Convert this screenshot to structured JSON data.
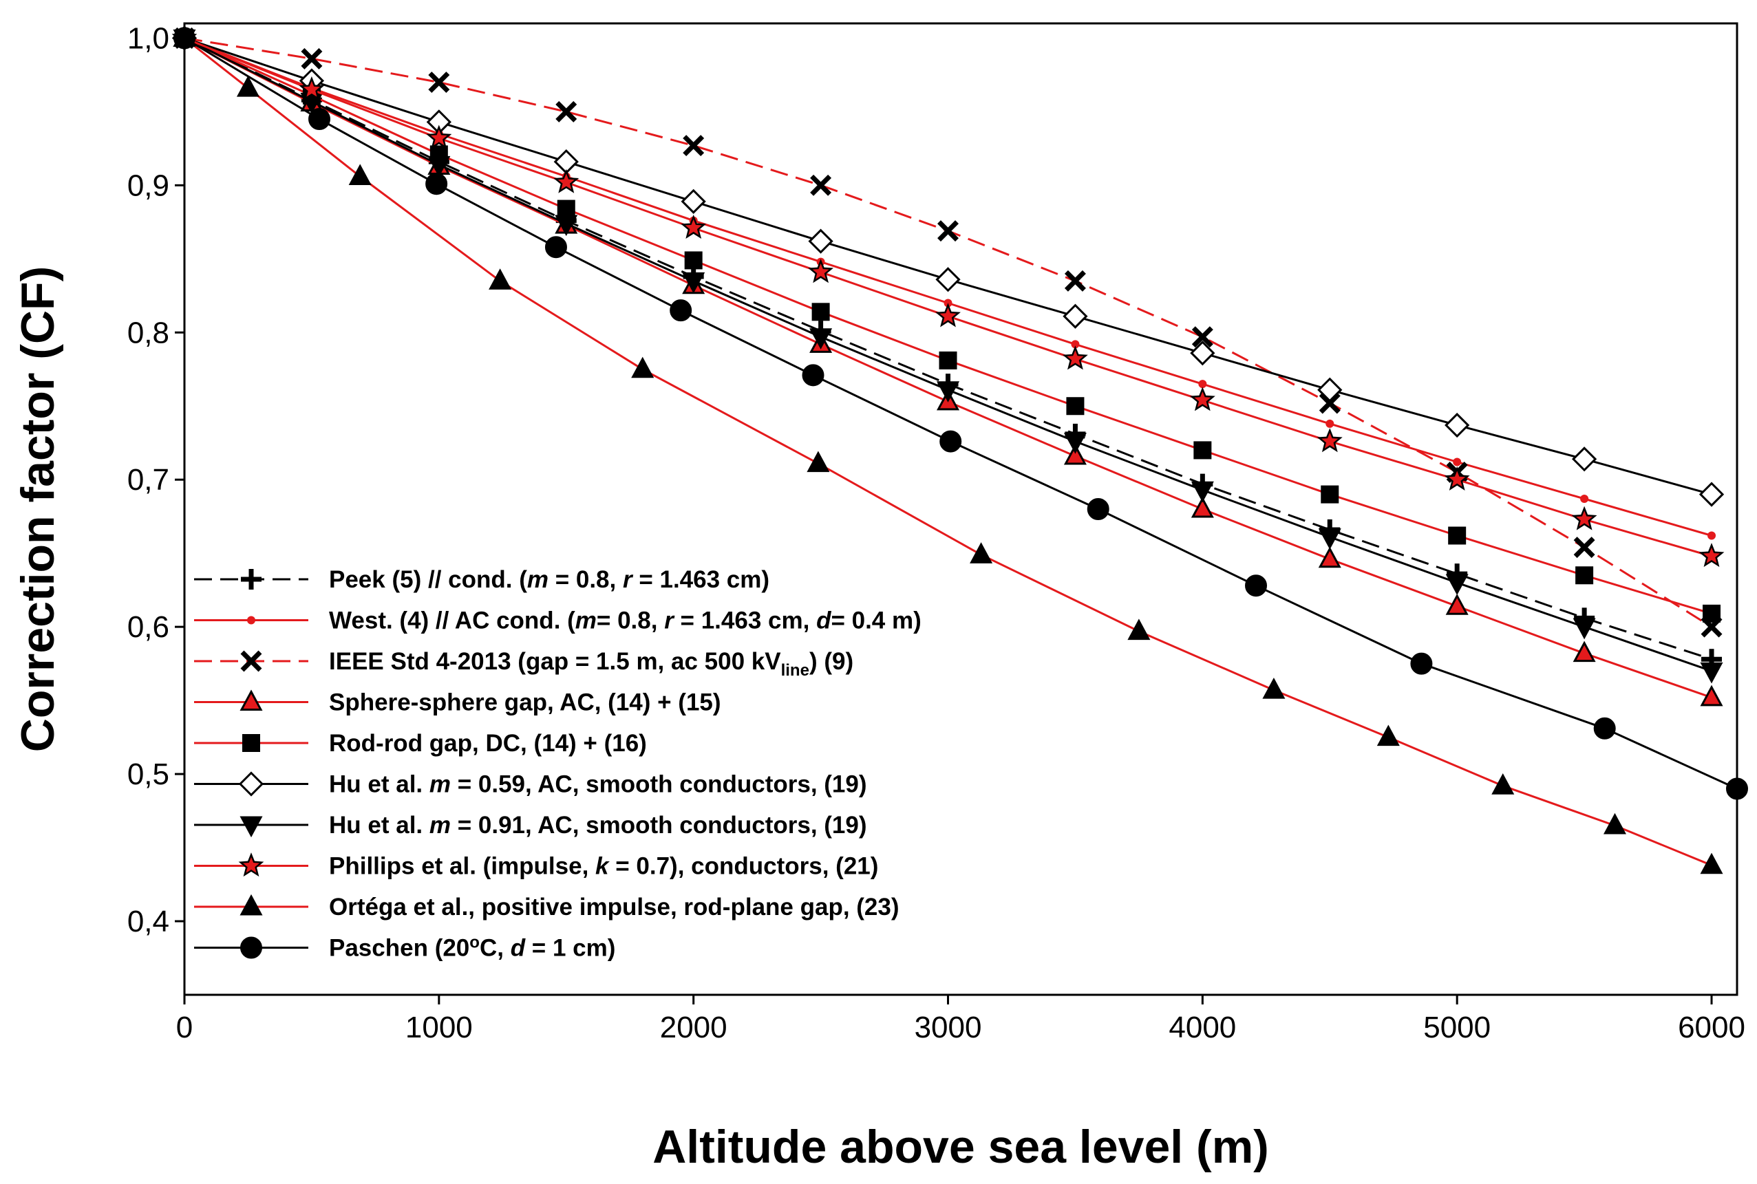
{
  "chart_data": {
    "type": "line",
    "title": "",
    "xlabel": "Altitude above sea level (m)",
    "ylabel": "Correction factor (CF)",
    "xlim": [
      0,
      6100
    ],
    "ylim": [
      0.35,
      1.01
    ],
    "x_ticks": [
      0,
      1000,
      2000,
      3000,
      4000,
      5000,
      6000
    ],
    "x_tick_labels": [
      "0",
      "1000",
      "2000",
      "3000",
      "4000",
      "5000",
      "6000"
    ],
    "y_ticks": [
      0.4,
      0.5,
      0.6,
      0.7,
      0.8,
      0.9,
      1.0
    ],
    "y_tick_labels": [
      "0,4",
      "0,5",
      "0,6",
      "0,7",
      "0,8",
      "0,9",
      "1,0"
    ],
    "grid": false,
    "legend_position": "bottom-left",
    "series": [
      {
        "name": "Peek (5) // cond. (m = 0.8, r = 1.463 cm)",
        "label_parts": [
          [
            "Peek (5) // cond. (",
            ""
          ],
          [
            "m",
            "italic"
          ],
          [
            " = 0.8, ",
            ""
          ],
          [
            "r",
            "italic"
          ],
          [
            " = 1.463 cm)",
            ""
          ]
        ],
        "color": "#000000",
        "dash": "dashed",
        "marker": "plus",
        "marker_fill": "#000000",
        "x": [
          0,
          500,
          1000,
          1500,
          2000,
          2500,
          3000,
          3500,
          4000,
          4500,
          5000,
          5500,
          6000
        ],
        "y": [
          1.0,
          0.958,
          0.916,
          0.876,
          0.838,
          0.801,
          0.765,
          0.731,
          0.697,
          0.666,
          0.636,
          0.606,
          0.578
        ]
      },
      {
        "name": "West. (4) // AC cond. (m= 0.8, r = 1.463 cm, d= 0.4 m)",
        "label_parts": [
          [
            "West. (4) // AC cond. (",
            ""
          ],
          [
            "m",
            "italic"
          ],
          [
            "= 0.8, ",
            ""
          ],
          [
            "r",
            "italic"
          ],
          [
            " = 1.463 cm, ",
            ""
          ],
          [
            "d",
            "italic"
          ],
          [
            "= 0.4 m)",
            ""
          ]
        ],
        "color": "#e41a1c",
        "dash": "solid",
        "marker": "dot",
        "marker_fill": "#e41a1c",
        "x": [
          0,
          500,
          1000,
          1500,
          2000,
          2500,
          3000,
          3500,
          4000,
          4500,
          5000,
          5500,
          6000
        ],
        "y": [
          1.0,
          0.966,
          0.935,
          0.906,
          0.876,
          0.848,
          0.82,
          0.792,
          0.765,
          0.738,
          0.712,
          0.687,
          0.662
        ]
      },
      {
        "name": "IEEE Std 4-2013 (gap = 1.5 m, ac 500 kVline) (9)",
        "label_parts": [
          [
            "IEEE Std 4-2013 (gap = 1.5 m, ac 500 kV",
            ""
          ],
          [
            "line",
            "sub"
          ],
          [
            ") (9)",
            ""
          ]
        ],
        "color": "#e41a1c",
        "dash": "dashed",
        "marker": "x",
        "marker_fill": "#000000",
        "x": [
          0,
          500,
          1000,
          1500,
          2000,
          2500,
          3000,
          3500,
          4000,
          4500,
          5000,
          5500,
          6000
        ],
        "y": [
          1.0,
          0.986,
          0.97,
          0.95,
          0.927,
          0.9,
          0.869,
          0.835,
          0.797,
          0.752,
          0.705,
          0.654,
          0.6
        ]
      },
      {
        "name": "Sphere-sphere gap, AC, (14) + (15)",
        "label_parts": [
          [
            "Sphere-sphere gap, AC, (14) + (15)",
            ""
          ]
        ],
        "color": "#e41a1c",
        "dash": "solid",
        "marker": "triangle",
        "marker_fill": "#e41a1c",
        "x": [
          0,
          500,
          1000,
          1500,
          2000,
          2500,
          3000,
          3500,
          4000,
          4500,
          5000,
          5500,
          6000
        ],
        "y": [
          1.0,
          0.956,
          0.913,
          0.873,
          0.832,
          0.792,
          0.753,
          0.716,
          0.68,
          0.646,
          0.614,
          0.582,
          0.552
        ]
      },
      {
        "name": "Rod-rod gap, DC, (14) + (16)",
        "label_parts": [
          [
            "Rod-rod gap, DC, (14) + (16)",
            ""
          ]
        ],
        "color": "#e41a1c",
        "dash": "solid",
        "marker": "square",
        "marker_fill": "#000000",
        "x": [
          0,
          500,
          1000,
          1500,
          2000,
          2500,
          3000,
          3500,
          4000,
          4500,
          5000,
          5500,
          6000
        ],
        "y": [
          1.0,
          0.961,
          0.921,
          0.884,
          0.849,
          0.814,
          0.781,
          0.75,
          0.72,
          0.69,
          0.662,
          0.635,
          0.609
        ]
      },
      {
        "name": "Hu et al. m = 0.59, AC, smooth conductors, (19)",
        "label_parts": [
          [
            "Hu et al. ",
            ""
          ],
          [
            "m",
            "italic"
          ],
          [
            " = 0.59, AC, smooth conductors, (19)",
            ""
          ]
        ],
        "color": "#000000",
        "dash": "solid",
        "marker": "diamond",
        "marker_fill": "#ffffff",
        "x": [
          0,
          500,
          1000,
          1500,
          2000,
          2500,
          3000,
          3500,
          4000,
          4500,
          5000,
          5500,
          6000
        ],
        "y": [
          1.0,
          0.971,
          0.943,
          0.916,
          0.889,
          0.862,
          0.836,
          0.811,
          0.786,
          0.761,
          0.737,
          0.714,
          0.69
        ]
      },
      {
        "name": "Hu et al. m = 0.91, AC, smooth conductors, (19)",
        "label_parts": [
          [
            "Hu et al. ",
            ""
          ],
          [
            "m",
            "italic"
          ],
          [
            " = 0.91, AC, smooth conductors, (19)",
            ""
          ]
        ],
        "color": "#000000",
        "dash": "solid",
        "marker": "triangle-down",
        "marker_fill": "#000000",
        "x": [
          0,
          500,
          1000,
          1500,
          2000,
          2500,
          3000,
          3500,
          4000,
          4500,
          5000,
          5500,
          6000
        ],
        "y": [
          1.0,
          0.957,
          0.914,
          0.874,
          0.835,
          0.797,
          0.761,
          0.726,
          0.693,
          0.661,
          0.63,
          0.6,
          0.57
        ]
      },
      {
        "name": "Phillips et al. (impulse, k = 0.7), conductors, (21)",
        "label_parts": [
          [
            "Phillips et al. (impulse, ",
            ""
          ],
          [
            "k",
            "italic"
          ],
          [
            " = 0.7), conductors, (21)",
            ""
          ]
        ],
        "color": "#e41a1c",
        "dash": "solid",
        "marker": "star",
        "marker_fill": "#e41a1c",
        "x": [
          0,
          500,
          1000,
          1500,
          2000,
          2500,
          3000,
          3500,
          4000,
          4500,
          5000,
          5500,
          6000
        ],
        "y": [
          1.0,
          0.965,
          0.932,
          0.902,
          0.871,
          0.841,
          0.811,
          0.782,
          0.754,
          0.726,
          0.7,
          0.673,
          0.648
        ]
      },
      {
        "name": "Ortéga et al., positive impulse, rod-plane gap, (23)",
        "label_parts": [
          [
            "Ortéga et al., positive impulse, rod-plane gap, (23)",
            ""
          ]
        ],
        "color": "#e41a1c",
        "dash": "solid",
        "marker": "triangle",
        "marker_fill": "#000000",
        "x": [
          0,
          250,
          690,
          1240,
          1800,
          2490,
          3130,
          3750,
          4280,
          4730,
          5180,
          5620,
          6000
        ],
        "y": [
          1.0,
          0.966,
          0.906,
          0.835,
          0.775,
          0.711,
          0.649,
          0.597,
          0.557,
          0.525,
          0.492,
          0.465,
          0.438
        ]
      },
      {
        "name": "Paschen (20ºC, d = 1 cm)",
        "label_parts": [
          [
            "Paschen (20",
            ""
          ],
          [
            "o",
            "sup"
          ],
          [
            "C, ",
            ""
          ],
          [
            "d",
            "italic"
          ],
          [
            " = 1 cm)",
            ""
          ]
        ],
        "color": "#000000",
        "dash": "solid",
        "marker": "circle",
        "marker_fill": "#000000",
        "x": [
          0,
          530,
          990,
          1460,
          1950,
          2470,
          3010,
          3590,
          4210,
          4860,
          5580,
          6100
        ],
        "y": [
          1.0,
          0.945,
          0.901,
          0.858,
          0.815,
          0.771,
          0.726,
          0.68,
          0.628,
          0.575,
          0.531,
          0.49
        ]
      }
    ]
  }
}
